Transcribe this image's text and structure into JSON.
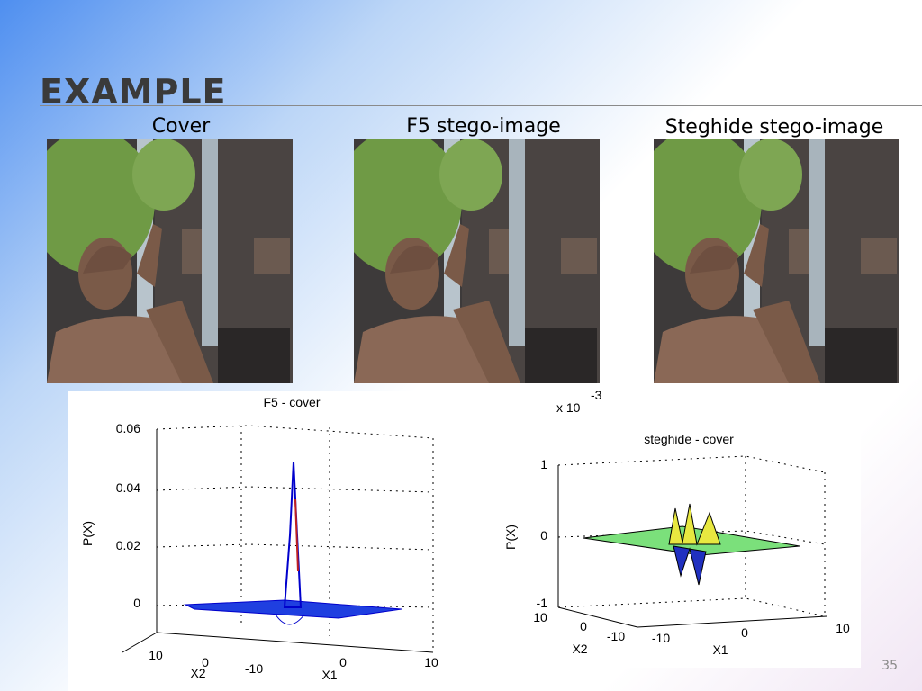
{
  "slide": {
    "title": "EXAMPLE",
    "page_number": "35"
  },
  "images": [
    {
      "caption": "Cover"
    },
    {
      "caption": "F5 stego-image"
    },
    {
      "caption": "Steghide stego-image"
    }
  ],
  "plots": [
    {
      "title": "F5 - cover",
      "z_label": "P(X)",
      "x1_label": "X1",
      "x2_label": "X2",
      "z_ticks": [
        "0.06",
        "0.04",
        "0.02",
        "0"
      ],
      "x2_ticks": [
        "10",
        "0"
      ],
      "x1_ticks": [
        "-10",
        "0",
        "10"
      ]
    },
    {
      "title": "steghide - cover",
      "scale_note": "x 10",
      "scale_exponent": "-3",
      "z_label": "P(X)",
      "x1_label": "X1",
      "x2_label": "X2",
      "z_ticks": [
        "1",
        "0",
        "-1"
      ],
      "x2_ticks": [
        "10",
        "0",
        "-10"
      ],
      "x1_ticks": [
        "-10",
        "0",
        "10"
      ]
    }
  ]
}
